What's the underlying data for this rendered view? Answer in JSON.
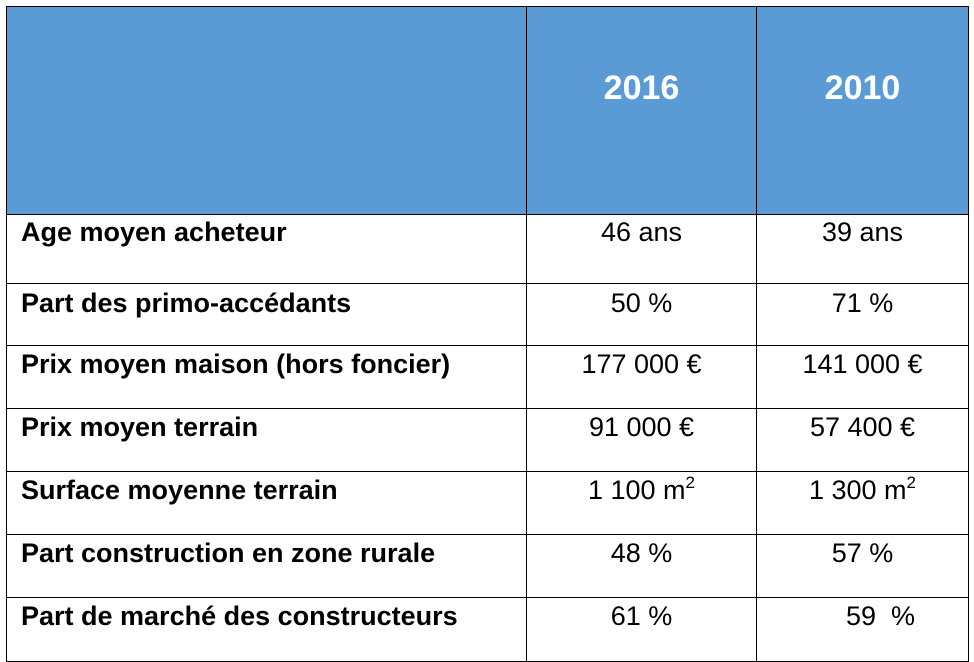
{
  "table": {
    "columns": [
      "",
      "2016",
      "2010"
    ],
    "rows": [
      {
        "label": "Age moyen acheteur",
        "v2016": "46 ans",
        "v2010": "39 ans"
      },
      {
        "label": "Part des primo-accédants",
        "v2016": "50 %",
        "v2010": "71 %"
      },
      {
        "label": "Prix moyen maison (hors foncier)",
        "v2016": "177 000 €",
        "v2010": "141 000 €"
      },
      {
        "label": "Prix moyen terrain",
        "v2016": "91 000 €",
        "v2010": "57 400 €"
      },
      {
        "label": "Surface moyenne terrain",
        "v2016": "1 100 m",
        "v2016_sup": "2",
        "v2010": "1 300 m",
        "v2010_sup": "2"
      },
      {
        "label": "Part construction en zone rurale",
        "v2016": "48 %",
        "v2010": "57 %"
      },
      {
        "label": "Part de marché des constructeurs",
        "v2016": "61 %",
        "v2010": "59  %"
      }
    ]
  }
}
